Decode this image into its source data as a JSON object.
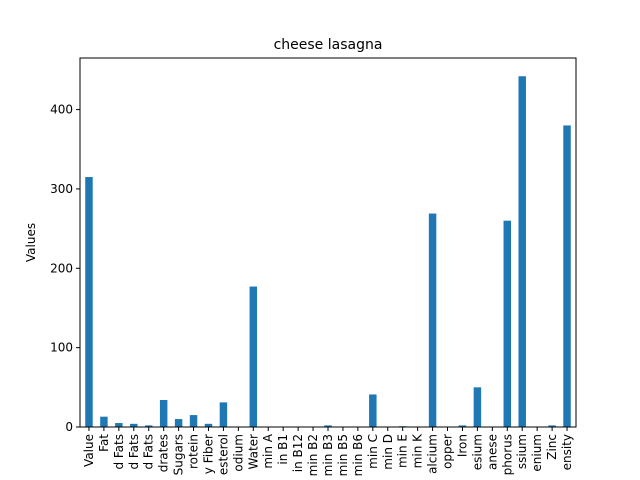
{
  "chart_data": {
    "type": "bar",
    "title": "cheese lasagna",
    "xlabel": "",
    "ylabel": "Values",
    "ylim": [
      0,
      465
    ],
    "yticks": [
      0,
      100,
      200,
      300,
      400
    ],
    "grid": false,
    "bar_color": "#1f77b4",
    "categories": [
      "Value",
      "Fat",
      "d Fats",
      "d Fats",
      "d Fats",
      "drates",
      "Sugars",
      "rotein",
      "y Fiber",
      "esterol",
      "odium",
      "Water",
      "min A",
      "in B1",
      "in B12",
      "min B2",
      "min B3",
      "min B5",
      "min B6",
      "min C",
      "min D",
      "min E",
      "min K",
      "alcium",
      "opper",
      "Iron",
      "esium",
      "anese",
      "phorus",
      "ssium",
      "enium",
      "Zinc",
      "ensity"
    ],
    "values": [
      315,
      13,
      5,
      4,
      2,
      34,
      10,
      15,
      4,
      31,
      0,
      177,
      0,
      0,
      0,
      0,
      2,
      0,
      0,
      41,
      0,
      1,
      0,
      269,
      0,
      2,
      50,
      0,
      260,
      442,
      0,
      2,
      380
    ]
  }
}
